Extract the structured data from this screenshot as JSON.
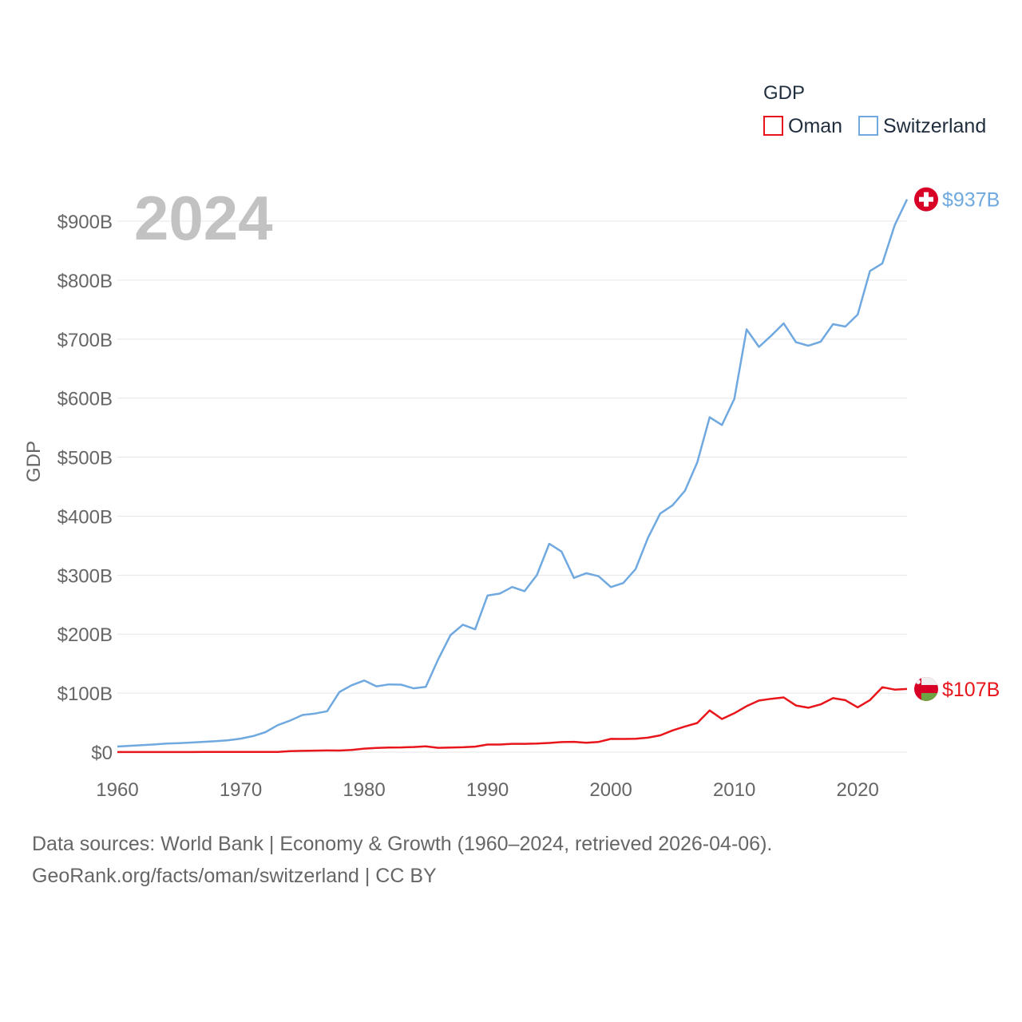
{
  "chart_data": {
    "type": "line",
    "title": "GDP",
    "year_label": "2024",
    "ylabel": "GDP",
    "xlabel": "",
    "xlim": [
      1960,
      2024
    ],
    "ylim": [
      0,
      950
    ],
    "x_ticks": [
      1960,
      1970,
      1980,
      1990,
      2000,
      2010,
      2020
    ],
    "y_ticks": [
      {
        "value": 0,
        "label": "$0"
      },
      {
        "value": 100,
        "label": "$100B"
      },
      {
        "value": 200,
        "label": "$200B"
      },
      {
        "value": 300,
        "label": "$300B"
      },
      {
        "value": 400,
        "label": "$400B"
      },
      {
        "value": 500,
        "label": "$500B"
      },
      {
        "value": 600,
        "label": "$600B"
      },
      {
        "value": 700,
        "label": "$700B"
      },
      {
        "value": 800,
        "label": "$800B"
      },
      {
        "value": 900,
        "label": "$900B"
      }
    ],
    "x": [
      1960,
      1961,
      1962,
      1963,
      1964,
      1965,
      1966,
      1967,
      1968,
      1969,
      1970,
      1971,
      1972,
      1973,
      1974,
      1975,
      1976,
      1977,
      1978,
      1979,
      1980,
      1981,
      1982,
      1983,
      1984,
      1985,
      1986,
      1987,
      1988,
      1989,
      1990,
      1991,
      1992,
      1993,
      1994,
      1995,
      1996,
      1997,
      1998,
      1999,
      2000,
      2001,
      2002,
      2003,
      2004,
      2005,
      2006,
      2007,
      2008,
      2009,
      2010,
      2011,
      2012,
      2013,
      2014,
      2015,
      2016,
      2017,
      2018,
      2019,
      2020,
      2021,
      2022,
      2023,
      2024
    ],
    "series": [
      {
        "name": "Oman",
        "color": "#e8151b",
        "end_label": "$107B",
        "flag": "oman",
        "values": [
          0.1,
          0.1,
          0.1,
          0.2,
          0.2,
          0.2,
          0.2,
          0.3,
          0.3,
          0.3,
          0.3,
          0.3,
          0.3,
          0.4,
          1.6,
          2.1,
          2.6,
          2.8,
          2.7,
          3.6,
          6.0,
          7.2,
          7.8,
          8.0,
          8.7,
          9.9,
          7.3,
          7.7,
          8.3,
          9.4,
          12.8,
          12.9,
          14.1,
          14.1,
          14.5,
          15.6,
          17.1,
          17.5,
          15.9,
          17.3,
          22.4,
          22.3,
          22.8,
          24.5,
          28.4,
          36.8,
          43.4,
          49.4,
          70.7,
          56.1,
          65.9,
          78.0,
          87.4,
          90.4,
          92.7,
          79.0,
          75.3,
          80.9,
          91.5,
          88.1,
          75.9,
          88.2,
          110.0,
          106.0,
          107.0
        ]
      },
      {
        "name": "Switzerland",
        "color": "#6fa9e0",
        "end_label": "$937B",
        "flag": "switzerland",
        "values": [
          9.5,
          10.7,
          11.9,
          13.0,
          14.5,
          15.3,
          16.3,
          17.4,
          18.6,
          20.2,
          22.9,
          27.2,
          33.8,
          45.7,
          53.4,
          62.9,
          65.4,
          69.3,
          102.0,
          113.4,
          121.4,
          111.5,
          114.8,
          114.4,
          108.1,
          110.6,
          157.2,
          198.3,
          216.0,
          208.1,
          265.4,
          268.8,
          279.9,
          272.8,
          300.1,
          353.2,
          340.0,
          295.3,
          303.3,
          298.1,
          279.8,
          286.6,
          310.2,
          363.1,
          404.4,
          418.4,
          443.0,
          491.2,
          567.6,
          554.5,
          598.7,
          716.6,
          686.8,
          706.1,
          726.7,
          694.8,
          688.9,
          695.6,
          725.4,
          721.4,
          741.6,
          815.5,
          828.4,
          893.0,
          937.0
        ]
      }
    ],
    "legend": {
      "title": "GDP",
      "position": "top-right",
      "items": [
        "Oman",
        "Switzerland"
      ]
    },
    "grid": true
  },
  "footer": {
    "line1": "Data sources: World Bank | Economy & Growth (1960–2024, retrieved 2026-04-06).",
    "line2": "GeoRank.org/facts/oman/switzerland | CC BY"
  }
}
